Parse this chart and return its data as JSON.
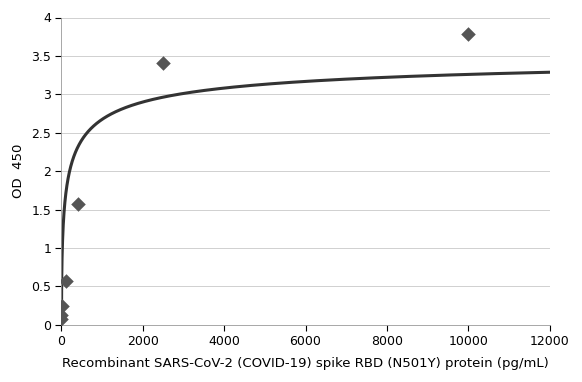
{
  "scatter_x": [
    0,
    0,
    12.5,
    100,
    400,
    2500,
    10000
  ],
  "scatter_y": [
    0.08,
    0.13,
    0.24,
    0.57,
    1.57,
    3.41,
    3.78
  ],
  "xlim": [
    0,
    12000
  ],
  "ylim": [
    0,
    4
  ],
  "xticks": [
    0,
    2000,
    4000,
    6000,
    8000,
    10000,
    12000
  ],
  "yticks": [
    0,
    0.5,
    1,
    1.5,
    2,
    2.5,
    3,
    3.5,
    4
  ],
  "xlabel": "Recombinant SARS-CoV-2 (COVID-19) spike RBD (N501Y) protein (pg/mL)",
  "ylabel": "OD  450",
  "curve_vmax": 3.6,
  "curve_km": 130,
  "curve_n": 0.52,
  "marker_color": "#555555",
  "line_color": "#333333",
  "background_color": "#ffffff",
  "grid_color": "#d0d0d0",
  "marker_size": 55,
  "line_width": 2.2,
  "xlabel_fontsize": 9.5,
  "ylabel_fontsize": 9.5,
  "tick_fontsize": 9
}
